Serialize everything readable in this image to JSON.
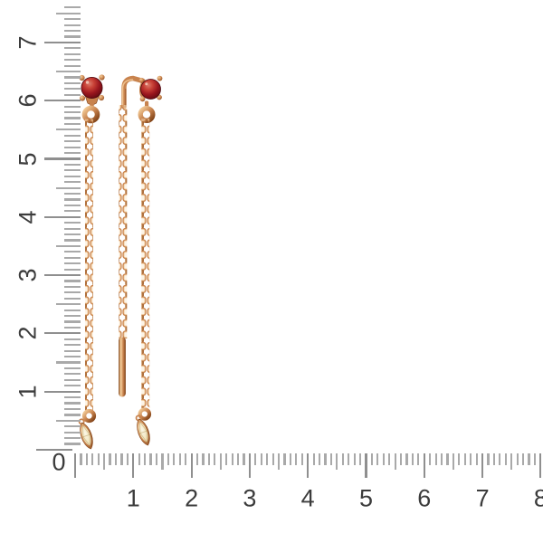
{
  "ruler": {
    "origin_label": "0",
    "vertical_labels": [
      "1",
      "2",
      "3",
      "4",
      "5",
      "6",
      "7"
    ],
    "horizontal_labels": [
      "1",
      "2",
      "3",
      "4",
      "5",
      "6",
      "7",
      "8"
    ]
  },
  "colors": {
    "background": "#ffffff",
    "tick": "#a9a9a9",
    "tick_major": "#8f8f8f",
    "label": "#3c3c3c",
    "gold_light": "#f4cd99",
    "gold_mid": "#c8834e",
    "gold_deep": "#a05a24",
    "gold_dark": "#7d3f14",
    "garnet_dark": "#57090f",
    "garnet_mid": "#9a161e",
    "garnet_light": "#c84136",
    "stone_pale": "#f2e7c2",
    "stone_pale_light": "#fbf7e6"
  }
}
